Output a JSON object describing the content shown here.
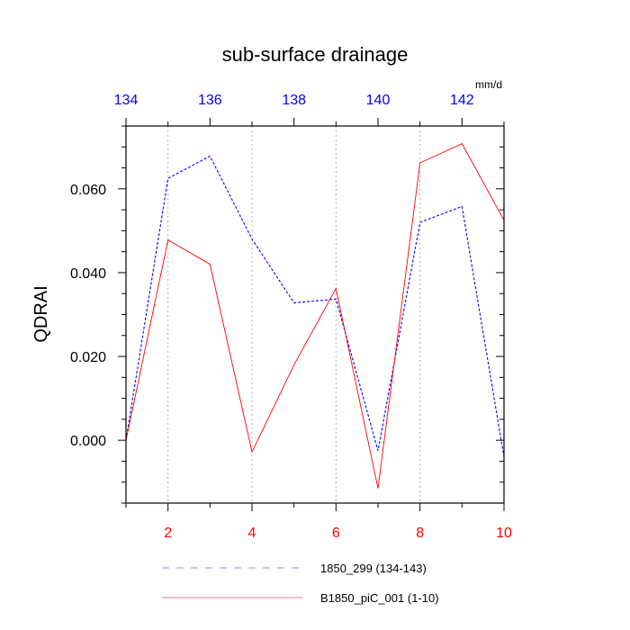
{
  "chart_data": {
    "type": "line",
    "title": "sub-surface drainage",
    "units": "mm/d",
    "ylabel": "QDRAI",
    "ylim": [
      -0.015,
      0.075
    ],
    "y_ticks": [
      0.0,
      0.02,
      0.04,
      0.06
    ],
    "y_tick_labels": [
      "0.000",
      "0.020",
      "0.040",
      "0.060"
    ],
    "y_minor_step": 0.005,
    "grid": "vertical dotted lines at bottom-axis major ticks",
    "bottom_axis": {
      "range": [
        1,
        10
      ],
      "ticks": [
        2,
        4,
        6,
        8,
        10
      ],
      "tick_labels": [
        "2",
        "4",
        "6",
        "8",
        "10"
      ],
      "color": "#ff0000"
    },
    "top_axis": {
      "range": [
        134,
        143
      ],
      "ticks": [
        134,
        136,
        138,
        140,
        142
      ],
      "tick_labels": [
        "134",
        "136",
        "138",
        "140",
        "142"
      ],
      "color": "#0000ff"
    },
    "series": [
      {
        "name": "1850_299 (134-143)",
        "axis": "top",
        "x": [
          134,
          135,
          136,
          137,
          138,
          139,
          140,
          141,
          142,
          143
        ],
        "values": [
          0.0,
          0.0625,
          0.0678,
          0.048,
          0.0328,
          0.0337,
          -0.0025,
          0.052,
          0.0558,
          -0.004
        ],
        "color": "#0000ff",
        "style": "dashed"
      },
      {
        "name": "B1850_piC_001 (1-10)",
        "axis": "bottom",
        "x": [
          1,
          2,
          3,
          4,
          5,
          6,
          7,
          8,
          9,
          10
        ],
        "values": [
          0.0,
          0.0478,
          0.042,
          -0.0028,
          0.018,
          0.0362,
          -0.0115,
          0.0662,
          0.0708,
          0.0525
        ],
        "color": "#ff0000",
        "style": "solid"
      }
    ],
    "legend_position": "bottom"
  }
}
